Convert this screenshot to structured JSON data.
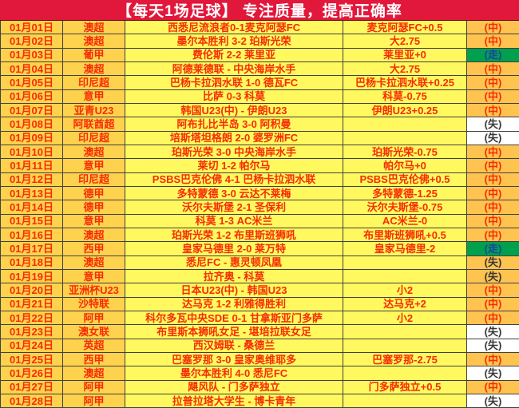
{
  "title": "【每天1场足球】 专注质量，提高正确率",
  "colors": {
    "title_bg": "#E2173C",
    "title_text": "#FFFFFF",
    "date_league_bg": "#FFD24E",
    "match_pick_bg": "#FFF95F",
    "result_hit_bg": "#FFC350",
    "result_push_bg": "#00A04D",
    "result_miss_bg": "#FFFFFF",
    "text_red": "#F52D05",
    "push_text_blue": "#1C3FA8",
    "miss_text_dark": "#373737",
    "grid_line": "#404040"
  },
  "rows": [
    {
      "date": "01月01日",
      "league": "澳超",
      "match": "西悉尼流浪者0-1麦克阿瑟FC",
      "pick": "麦克阿瑟FC+0.5",
      "result": "(中)",
      "result_style": "hit"
    },
    {
      "date": "01月02日",
      "league": "澳超",
      "match": "墨尔本胜利 3-2 珀斯光荣",
      "pick": "大2.75",
      "result": "(中)",
      "result_style": "hit"
    },
    {
      "date": "01月03日",
      "league": "葡甲",
      "match": "费伦斯 2-2 莱里亚",
      "pick": "莱里亚+0",
      "result": "(走)",
      "result_style": "push"
    },
    {
      "date": "01月04日",
      "league": "澳超",
      "match": "阿德莱德联 - 中央海岸水手",
      "pick": "大2.75",
      "result": "(中)",
      "result_style": "hit"
    },
    {
      "date": "01月05日",
      "league": "印尼超",
      "match": "巴杨卡拉泗水联 1-0 德瓦FC",
      "pick": "巴杨卡拉泗水联+0.25",
      "result": "(中)",
      "result_style": "hit"
    },
    {
      "date": "01月06日",
      "league": "意甲",
      "match": "比萨 0-3 科莫",
      "pick": "科莫-0.75",
      "result": "(中)",
      "result_style": "hit"
    },
    {
      "date": "01月07日",
      "league": "亚青U23",
      "match": "韩国U23(中) - 伊朗U23",
      "pick": "伊朗U23+0.25",
      "result": "(中)",
      "result_style": "hit"
    },
    {
      "date": "01月08日",
      "league": "阿联酋超",
      "match": "阿布扎比半岛 3-0 阿积曼",
      "pick": "",
      "result": "(失)",
      "result_style": "miss"
    },
    {
      "date": "01月09日",
      "league": "印尼超",
      "match": "培斯塔坦格朗 2-0 婆罗洲FC",
      "pick": "",
      "result": "(失)",
      "result_style": "miss"
    },
    {
      "date": "01月10日",
      "league": "澳超",
      "match": "珀斯光荣 3-0 中央海岸水手",
      "pick": "珀斯光荣-0.75",
      "result": "(中)",
      "result_style": "hit"
    },
    {
      "date": "01月11日",
      "league": "意甲",
      "match": "莱切 1-2 帕尔马",
      "pick": "帕尔马+0",
      "result": "(中)",
      "result_style": "hit"
    },
    {
      "date": "01月12日",
      "league": "印尼超",
      "match": "PSBS巴克伦佛 4-1 巴杨卡拉泗水联",
      "pick": "PSBS巴克伦佛+0.5",
      "result": "(中)",
      "result_style": "hit"
    },
    {
      "date": "01月13日",
      "league": "德甲",
      "match": "多特蒙德 3-0 云达不莱梅",
      "pick": "多特蒙德-1.25",
      "result": "(中)",
      "result_style": "hit"
    },
    {
      "date": "01月14日",
      "league": "德甲",
      "match": "沃尔夫斯堡 2-1 圣保利",
      "pick": "沃尔夫斯堡-0.75",
      "result": "(中)",
      "result_style": "hit"
    },
    {
      "date": "01月15日",
      "league": "意甲",
      "match": "科莫 1-3 AC米兰",
      "pick": "AC米兰-0",
      "result": "(中)",
      "result_style": "hit"
    },
    {
      "date": "01月16日",
      "league": "澳超",
      "match": "珀斯光荣 1-2 布里斯班狮吼",
      "pick": "布里斯班狮吼+0.5",
      "result": "(中)",
      "result_style": "hit"
    },
    {
      "date": "01月17日",
      "league": "西甲",
      "match": "皇家马德里 2-0 莱万特",
      "pick": "皇家马德里-2",
      "result": "(走)",
      "result_style": "push"
    },
    {
      "date": "01月18日",
      "league": "澳超",
      "match": "悉尼FC - 惠灵顿凤凰",
      "pick": "",
      "result": "(失)",
      "result_style": "miss_amber"
    },
    {
      "date": "01月19日",
      "league": "意甲",
      "match": "拉齐奥 - 科莫",
      "pick": "",
      "result": "(失)",
      "result_style": "miss_amber"
    },
    {
      "date": "01月20日",
      "league": "亚洲杯U23",
      "match": "日本U23(中) - 韩国U23",
      "pick": "小2",
      "result": "(中)",
      "result_style": "hit"
    },
    {
      "date": "01月21日",
      "league": "沙特联",
      "match": "达马克 1-2 利雅得胜利",
      "pick": "达马克+2",
      "result": "(中)",
      "result_style": "hit"
    },
    {
      "date": "01月22日",
      "league": "阿甲",
      "match": "科尔多瓦中央SDE 0-1 甘拿斯亚门多萨",
      "pick": "小2",
      "result": "(中)",
      "result_style": "hit"
    },
    {
      "date": "01月23日",
      "league": "澳女联",
      "match": "布里斯本狮吼女足 - 堪培拉联女足",
      "pick": "",
      "result": "(失)",
      "result_style": "miss"
    },
    {
      "date": "01月24日",
      "league": "英超",
      "match": "西汉姆联 - 桑德兰",
      "pick": "",
      "result": "(失)",
      "result_style": "miss"
    },
    {
      "date": "01月25日",
      "league": "西甲",
      "match": "巴塞罗那 3-0 皇家奥维耶多",
      "pick": "巴塞罗那-2.75",
      "result": "(中)",
      "result_style": "hit"
    },
    {
      "date": "01月26日",
      "league": "澳超",
      "match": "墨尔本胜利 4-0 悉尼FC",
      "pick": "",
      "result": "(失)",
      "result_style": "miss"
    },
    {
      "date": "01月27日",
      "league": "阿甲",
      "match": "飓风队 - 门多萨独立",
      "pick": "门多萨独立+0.5",
      "result": "(中)",
      "result_style": "hit"
    },
    {
      "date": "01月28日",
      "league": "阿甲",
      "match": "拉普拉塔大学生 - 博卡青年",
      "pick": "",
      "result": "(失)",
      "result_style": "miss"
    }
  ]
}
